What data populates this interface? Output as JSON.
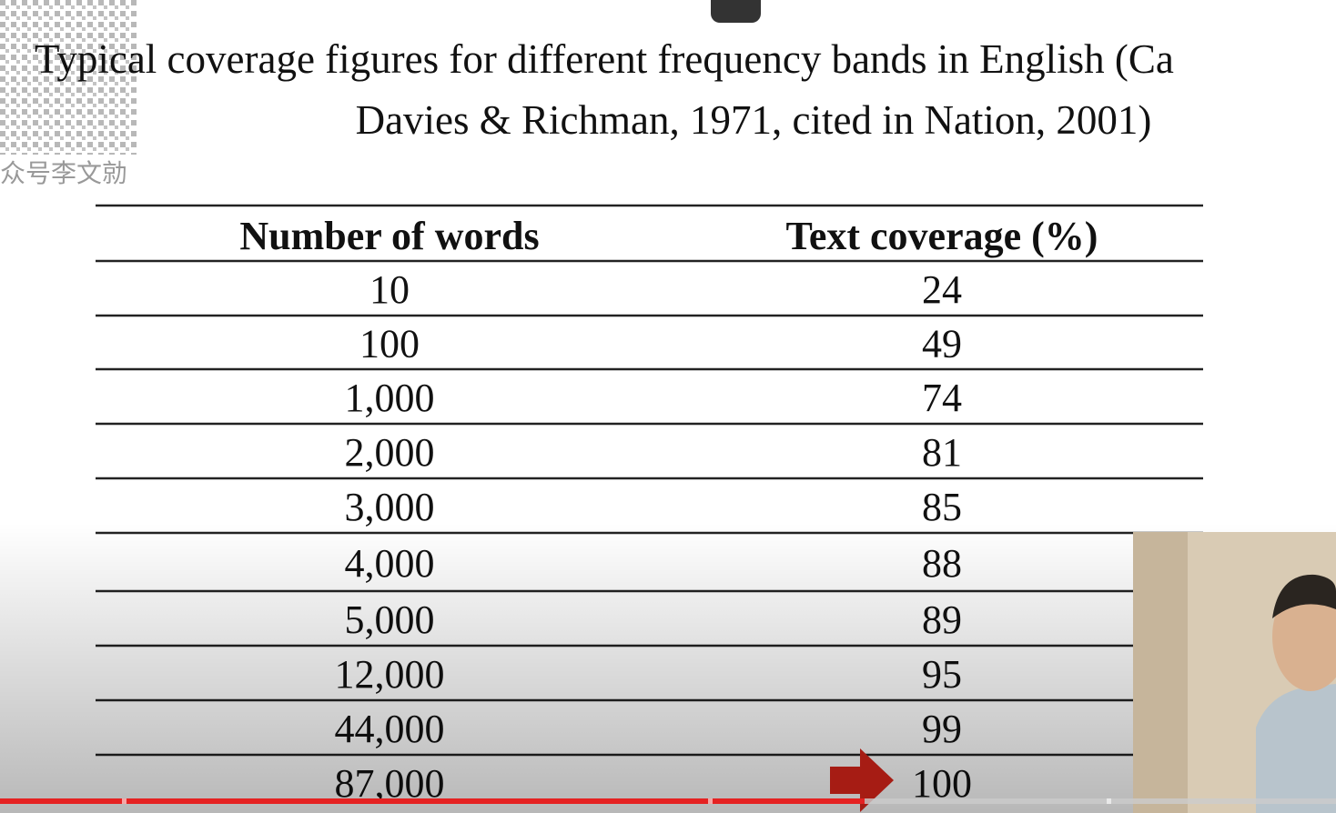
{
  "watermark": "众号李文勍",
  "title": {
    "line1": "Typical coverage figures for different frequency bands in English (Ca",
    "line2": "Davies & Richman, 1971, cited in Nation, 2001)"
  },
  "table": {
    "header": [
      "Number of words",
      "Text coverage (%)"
    ],
    "rows": [
      [
        "10",
        "24"
      ],
      [
        "100",
        "49"
      ],
      [
        "1,000",
        "74"
      ],
      [
        "2,000",
        "81"
      ],
      [
        "3,000",
        "85"
      ],
      [
        "4,000",
        "88"
      ],
      [
        "5,000",
        "89"
      ],
      [
        "12,000",
        "95"
      ],
      [
        "44,000",
        "99"
      ],
      [
        "87,000",
        "100"
      ]
    ]
  }
}
